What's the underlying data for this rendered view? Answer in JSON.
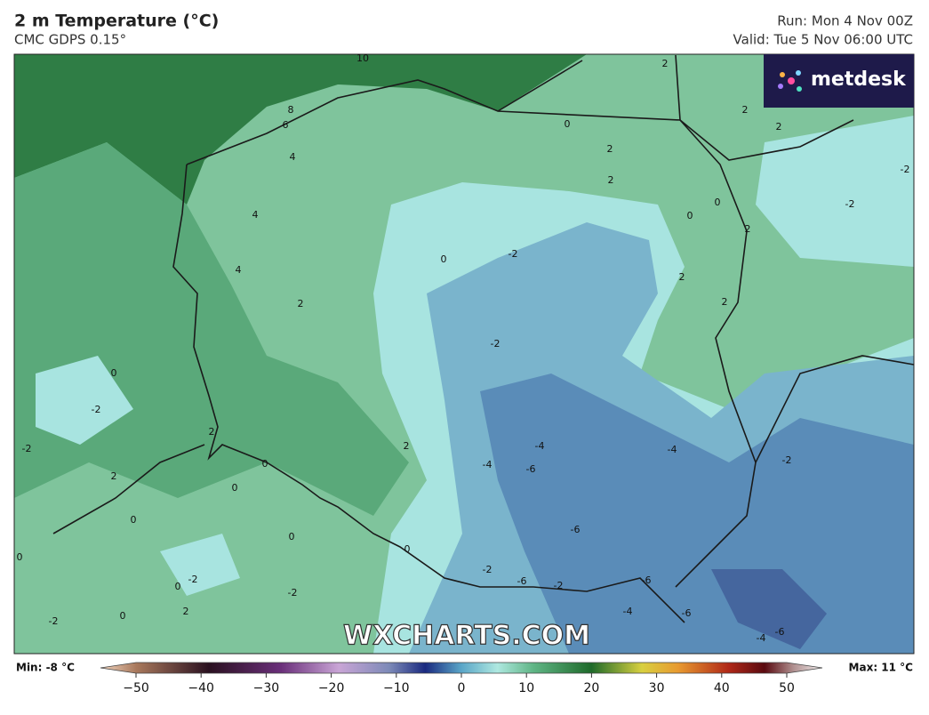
{
  "header": {
    "title": "2 m Temperature (°C)",
    "subtitle": "CMC GDPS 0.15°",
    "run": "Run: Mon 4 Nov 00Z",
    "valid": "Valid: Tue 5 Nov 06:00 UTC"
  },
  "logo": "metdesk",
  "watermark": "WXCHARTS.COM",
  "contour_labels": [
    "10",
    "8",
    "6",
    "4",
    "4",
    "4",
    "2",
    "2",
    "2",
    "2",
    "0",
    "2",
    "2",
    "0",
    "0",
    "2",
    "2",
    "2",
    "-2",
    "-2",
    "0",
    "-2",
    "-2",
    "0",
    "-2",
    "2",
    "2",
    "0",
    "0",
    "2",
    "-2",
    "-4",
    "-4",
    "-6",
    "-4",
    "-2",
    "0",
    "0",
    "0",
    "-6",
    "0",
    "-2",
    "0",
    "-2",
    "-2",
    "-6",
    "-2",
    "-6",
    "2",
    "0",
    "-2",
    "-4",
    "-6",
    "-4",
    "-6"
  ],
  "colorbar": {
    "min_label": "Min: -8 °C",
    "max_label": "Max: 11 °C",
    "ticks": [
      "−50",
      "−40",
      "−30",
      "−20",
      "−10",
      "0",
      "10",
      "20",
      "30",
      "40",
      "50"
    ]
  }
}
